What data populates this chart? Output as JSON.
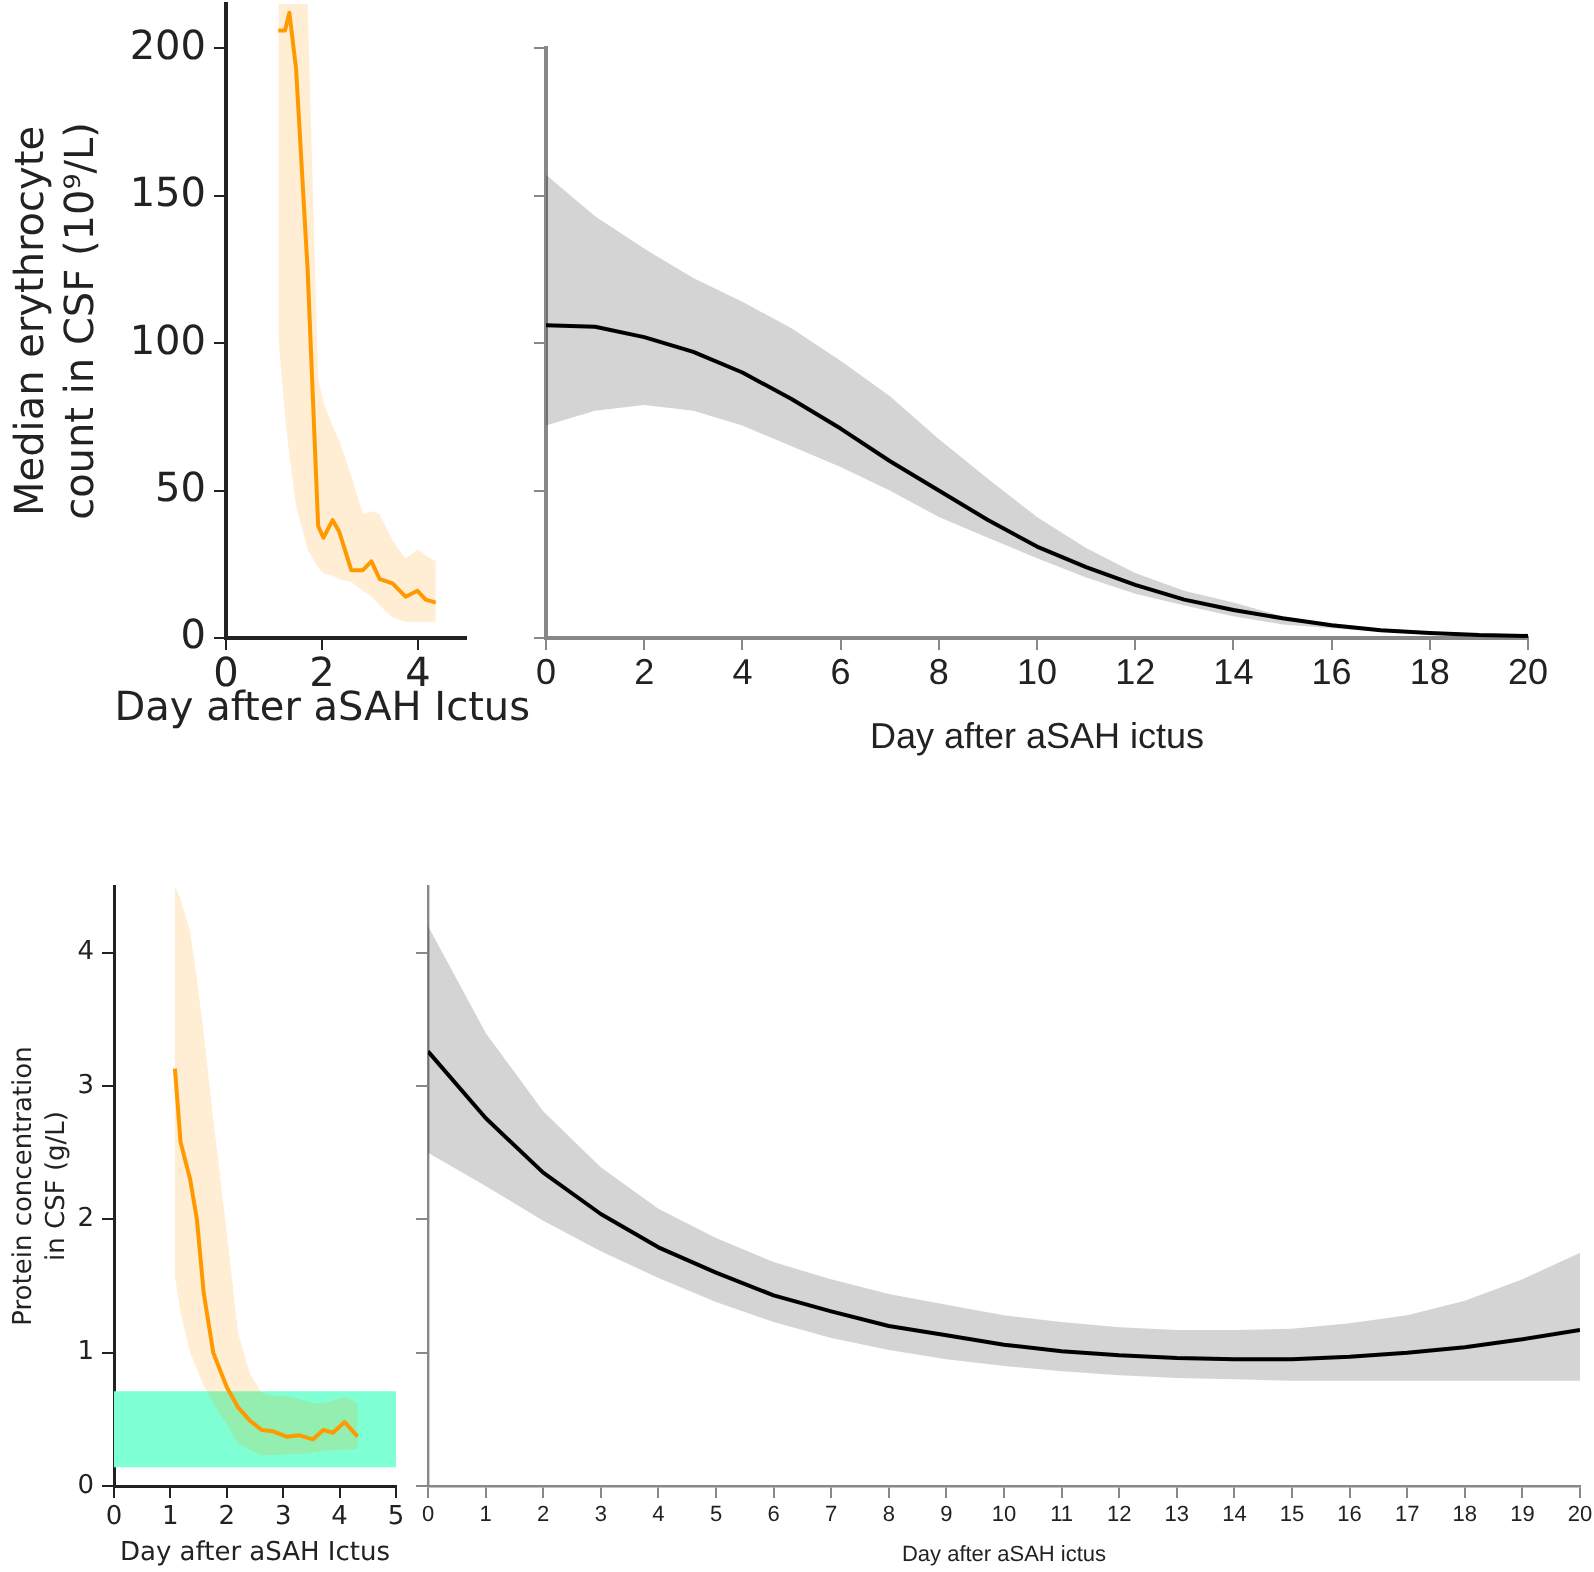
{
  "chart_data": [
    {
      "type": "line",
      "xlabel": "Day after aSAH Ictus",
      "ylabel": "Median erythrocyte count in CSF (10⁹/L)",
      "xlim": [
        0,
        5
      ],
      "xticks": [
        0,
        2,
        4
      ],
      "ylim": [
        0,
        215
      ],
      "yticks": [
        0,
        50,
        100,
        150,
        200
      ],
      "grid": false,
      "legend": false,
      "marker": "none",
      "series": [
        {
          "color": "#ff9900",
          "x": [
            1.09,
            1.23,
            1.32,
            1.46,
            1.7,
            1.92,
            2.03,
            2.22,
            2.36,
            2.61,
            2.85,
            3.03,
            3.2,
            3.47,
            3.74,
            3.99,
            4.16,
            4.37
          ],
          "values": [
            206,
            206,
            212,
            193,
            125,
            38,
            34,
            40,
            36,
            23,
            23,
            26,
            20,
            18.5,
            14,
            16,
            13,
            12
          ],
          "lower": [
            102,
            75,
            62,
            45,
            30,
            24,
            22,
            21,
            20,
            19,
            16,
            14,
            11,
            7,
            5.5,
            5.5,
            5.5,
            5.5
          ],
          "upper": [
            215,
            215,
            215,
            215,
            215,
            88,
            80,
            72,
            67,
            55,
            42,
            43,
            42,
            33,
            27,
            30,
            28,
            26
          ]
        }
      ]
    },
    {
      "type": "line",
      "xlabel": "Day after aSAH ictus",
      "xlim": [
        0,
        20
      ],
      "xticks": [
        0,
        2,
        4,
        6,
        8,
        10,
        12,
        14,
        16,
        18,
        20
      ],
      "ylim": [
        0,
        200
      ],
      "yticks": [
        0,
        50,
        100,
        150,
        200
      ],
      "tick_labels": "x",
      "grid": false,
      "legend": false,
      "marker": "none",
      "series": [
        {
          "color": "#000000",
          "x": [
            0,
            1,
            2,
            3,
            4,
            5,
            6,
            7,
            8,
            9,
            10,
            11,
            12,
            13,
            14,
            15,
            16,
            17,
            18,
            19,
            20
          ],
          "values": [
            106,
            105.5,
            102,
            97,
            90,
            81,
            71,
            60,
            50,
            40,
            31,
            24,
            18,
            13,
            9.5,
            6.7,
            4.3,
            2.6,
            1.7,
            1,
            0.7
          ],
          "lower": [
            72,
            77,
            79,
            77,
            72,
            65,
            58,
            50,
            41,
            34,
            27,
            20.5,
            15,
            11,
            7.4,
            4.6,
            3.3,
            2.1,
            1.2,
            0.7,
            0.5
          ],
          "upper": [
            157,
            143,
            132,
            122,
            114,
            105,
            94,
            82,
            67.5,
            54,
            41,
            30.5,
            22,
            16,
            12,
            7.4,
            5,
            3.2,
            2.2,
            1.5,
            1.0
          ]
        }
      ]
    },
    {
      "type": "line",
      "xlabel": "Day after aSAH Ictus",
      "ylabel": "Protein concentration in CSF (g/L)",
      "xlim": [
        0,
        5
      ],
      "xticks": [
        0,
        1,
        2,
        3,
        4,
        5
      ],
      "ylim": [
        0,
        4.5
      ],
      "yticks": [
        0,
        1,
        2,
        3,
        4
      ],
      "grid": false,
      "legend": false,
      "marker": "none",
      "bands": [
        {
          "axis": "y",
          "from": 0.14,
          "to": 0.71,
          "color": "#7fffd4"
        }
      ],
      "series": [
        {
          "color": "#ff9900",
          "x": [
            1.08,
            1.18,
            1.35,
            1.47,
            1.59,
            1.76,
            2.0,
            2.2,
            2.41,
            2.62,
            2.82,
            3.06,
            3.29,
            3.53,
            3.71,
            3.88,
            4.09,
            4.32
          ],
          "values": [
            3.13,
            2.58,
            2.3,
            2.0,
            1.45,
            1.0,
            0.74,
            0.59,
            0.49,
            0.42,
            0.41,
            0.37,
            0.38,
            0.35,
            0.42,
            0.4,
            0.48,
            0.37
          ],
          "lower": [
            1.57,
            1.3,
            1.0,
            0.88,
            0.75,
            0.62,
            0.46,
            0.32,
            0.27,
            0.23,
            0.23,
            0.24,
            0.24,
            0.25,
            0.26,
            0.27,
            0.27,
            0.28
          ],
          "upper": [
            4.5,
            4.4,
            4.16,
            3.8,
            3.4,
            2.75,
            1.9,
            1.15,
            0.84,
            0.7,
            0.68,
            0.67,
            0.65,
            0.62,
            0.62,
            0.64,
            0.67,
            0.62
          ]
        }
      ]
    },
    {
      "type": "line",
      "xlabel": "Day after aSAH ictus",
      "xlim": [
        0,
        20
      ],
      "xticks": [
        0,
        1,
        2,
        3,
        4,
        5,
        6,
        7,
        8,
        9,
        10,
        11,
        12,
        13,
        14,
        15,
        16,
        17,
        18,
        19,
        20
      ],
      "ylim": [
        0,
        4.5
      ],
      "yticks": [
        0,
        1,
        2,
        3,
        4
      ],
      "tick_labels": "x",
      "grid": false,
      "legend": false,
      "marker": "none",
      "series": [
        {
          "color": "#000000",
          "x": [
            0,
            1,
            2,
            3,
            4,
            5,
            6,
            7,
            8,
            9,
            10,
            11,
            12,
            13,
            14,
            15,
            16,
            17,
            18,
            19,
            20
          ],
          "values": [
            3.26,
            2.76,
            2.35,
            2.04,
            1.79,
            1.6,
            1.43,
            1.31,
            1.2,
            1.13,
            1.06,
            1.01,
            0.98,
            0.96,
            0.95,
            0.95,
            0.97,
            1.0,
            1.04,
            1.1,
            1.17
          ],
          "lower": [
            2.5,
            2.25,
            1.99,
            1.76,
            1.56,
            1.38,
            1.23,
            1.11,
            1.02,
            0.95,
            0.9,
            0.86,
            0.83,
            0.81,
            0.8,
            0.79,
            0.79,
            0.79,
            0.79,
            0.79,
            0.79
          ],
          "upper": [
            4.2,
            3.4,
            2.81,
            2.39,
            2.08,
            1.86,
            1.68,
            1.55,
            1.44,
            1.36,
            1.28,
            1.23,
            1.19,
            1.17,
            1.17,
            1.18,
            1.22,
            1.28,
            1.39,
            1.55,
            1.75
          ]
        }
      ]
    }
  ]
}
